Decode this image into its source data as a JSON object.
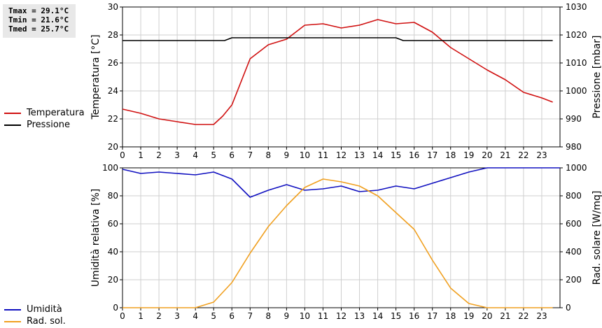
{
  "stats": {
    "tmax": "Tmax = 29.1°C",
    "tmin": "Tmin = 21.6°C",
    "tmed": "Tmed = 25.7°C"
  },
  "legend_top": [
    {
      "label": "Temperatura",
      "color": "#d01010"
    },
    {
      "label": "Pressione",
      "color": "#000000"
    }
  ],
  "legend_bottom": [
    {
      "label": "Umidità",
      "color": "#1010c0"
    },
    {
      "label": "Rad. sol.",
      "color": "#f0a020"
    }
  ],
  "chart_data": [
    {
      "type": "line",
      "xlim": [
        0,
        24
      ],
      "x_ticks": [
        "0",
        "1",
        "2",
        "3",
        "4",
        "5",
        "6",
        "7",
        "8",
        "9",
        "10",
        "11",
        "12",
        "13",
        "14",
        "15",
        "16",
        "17",
        "18",
        "19",
        "20",
        "21",
        "22",
        "23"
      ],
      "ylabel": "Temperatura [°C]",
      "ylim": [
        20,
        30
      ],
      "y_ticks": [
        "20",
        "22",
        "24",
        "26",
        "28",
        "30"
      ],
      "y2label": "Pressione [mbar]",
      "y2lim": [
        980,
        1030
      ],
      "y2_ticks": [
        "980",
        "990",
        "1000",
        "1010",
        "1020",
        "1030"
      ],
      "grid": true,
      "series": [
        {
          "name": "Temperatura",
          "axis": "left",
          "color": "#d01010",
          "x": [
            0,
            1,
            2,
            3,
            4,
            5,
            5.5,
            6,
            7,
            8,
            9,
            10,
            11,
            12,
            13,
            14,
            15,
            16,
            17,
            18,
            19,
            20,
            21,
            22,
            23,
            23.6
          ],
          "y": [
            22.7,
            22.4,
            22.0,
            21.8,
            21.6,
            21.6,
            22.2,
            23.0,
            26.3,
            27.3,
            27.7,
            28.7,
            28.8,
            28.5,
            28.7,
            29.1,
            28.8,
            28.9,
            28.2,
            27.1,
            26.3,
            25.5,
            24.8,
            23.9,
            23.5,
            23.2
          ]
        },
        {
          "name": "Pressione",
          "axis": "right",
          "color": "#000000",
          "x": [
            0,
            5.6,
            6.0,
            15.0,
            15.4,
            23.6
          ],
          "y": [
            1018,
            1018,
            1019,
            1019,
            1018,
            1018
          ]
        }
      ]
    },
    {
      "type": "line",
      "xlim": [
        0,
        24
      ],
      "x_ticks": [
        "0",
        "1",
        "2",
        "3",
        "4",
        "5",
        "6",
        "7",
        "8",
        "9",
        "10",
        "11",
        "12",
        "13",
        "14",
        "15",
        "16",
        "17",
        "18",
        "19",
        "20",
        "21",
        "22",
        "23"
      ],
      "ylabel": "Umidità relativa [%]",
      "ylim": [
        0,
        100
      ],
      "y_ticks": [
        "0",
        "20",
        "40",
        "60",
        "80",
        "100"
      ],
      "y2label": "Rad. solare [W/mq]",
      "y2lim": [
        0,
        1000
      ],
      "y2_ticks": [
        "0",
        "200",
        "400",
        "600",
        "800",
        "1000"
      ],
      "grid": true,
      "series": [
        {
          "name": "Umidità",
          "axis": "left",
          "color": "#1010c0",
          "x": [
            0,
            1,
            2,
            3,
            4,
            5,
            6,
            7,
            8,
            9,
            10,
            11,
            12,
            13,
            14,
            15,
            16,
            17,
            18,
            19,
            20,
            21,
            22,
            23,
            24
          ],
          "y": [
            99,
            96,
            97,
            96,
            95,
            97,
            92,
            79,
            84,
            88,
            84,
            85,
            87,
            83,
            84,
            87,
            85,
            89,
            93,
            97,
            100,
            100,
            100,
            100,
            100
          ]
        },
        {
          "name": "Rad. sol.",
          "axis": "right",
          "color": "#f0a020",
          "x": [
            0,
            1,
            2,
            3,
            4,
            5,
            6,
            7,
            8,
            9,
            10,
            11,
            12,
            13,
            14,
            15,
            16,
            17,
            18,
            19,
            20,
            21,
            22,
            23,
            23.6
          ],
          "y": [
            0,
            0,
            0,
            0,
            0,
            40,
            180,
            390,
            580,
            730,
            860,
            920,
            900,
            870,
            800,
            680,
            560,
            340,
            140,
            30,
            0,
            0,
            0,
            0,
            0
          ]
        }
      ]
    }
  ]
}
